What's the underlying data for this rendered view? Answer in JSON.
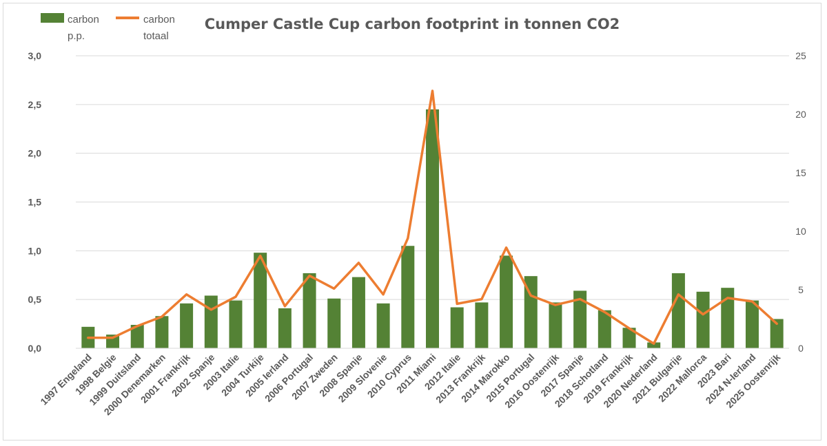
{
  "chart_data": {
    "type": "bar",
    "title": "Cumper Castle Cup carbon footprint in tonnen CO2",
    "categories": [
      "1997 Engeland",
      "1998 Belgie",
      "1999 Duitsland",
      "2000 Denemarken",
      "2001 Frankrijk",
      "2002 Spanje",
      "2003 Italie",
      "2004 Turkije",
      "2005 Ierland",
      "2006 Portugal",
      "2007 Zweden",
      "2008 Spanje",
      "2009 Slovenie",
      "2010 Cyprus",
      "2011 Miami",
      "2012 Italie",
      "2013 Frankrijk",
      "2014 Marokko",
      "2015 Portugal",
      "2016 Oostenrijk",
      "2017 Spanje",
      "2018 Schotland",
      "2019 Frankrijk",
      "2020 Nederland",
      "2021 Bulgarije",
      "2022 Mallorca",
      "2023 Bari",
      "2024 N-Ierland",
      "2025 Oostenrijk"
    ],
    "series": [
      {
        "name_lines": [
          "carbon",
          "p.p."
        ],
        "type": "bar",
        "axis": "left",
        "color": "#548235",
        "values": [
          0.22,
          0.14,
          0.24,
          0.33,
          0.46,
          0.54,
          0.49,
          0.98,
          0.41,
          0.77,
          0.51,
          0.73,
          0.46,
          1.05,
          2.45,
          0.42,
          0.47,
          0.95,
          0.74,
          0.47,
          0.59,
          0.39,
          0.21,
          0.06,
          0.77,
          0.58,
          0.62,
          0.49,
          0.3
        ]
      },
      {
        "name_lines": [
          "carbon",
          "totaal"
        ],
        "type": "line",
        "axis": "right",
        "color": "#ED7D31",
        "values": [
          0.9,
          0.9,
          1.9,
          2.7,
          4.6,
          3.3,
          4.4,
          7.9,
          3.6,
          6.2,
          5.1,
          7.3,
          4.6,
          9.4,
          22.0,
          3.8,
          4.2,
          8.6,
          4.5,
          3.7,
          4.2,
          3.1,
          1.7,
          0.4,
          4.6,
          2.9,
          4.3,
          4.0,
          2.1
        ]
      }
    ],
    "y_left": {
      "lim": [
        0,
        3.0
      ],
      "ticks": [
        "0,0",
        "0,5",
        "1,0",
        "1,5",
        "2,0",
        "2,5",
        "3,0"
      ]
    },
    "y_right": {
      "lim": [
        0,
        25
      ],
      "ticks": [
        "0",
        "5",
        "10",
        "15",
        "20",
        "25"
      ]
    },
    "grid": true,
    "legend_position": "top-left"
  }
}
